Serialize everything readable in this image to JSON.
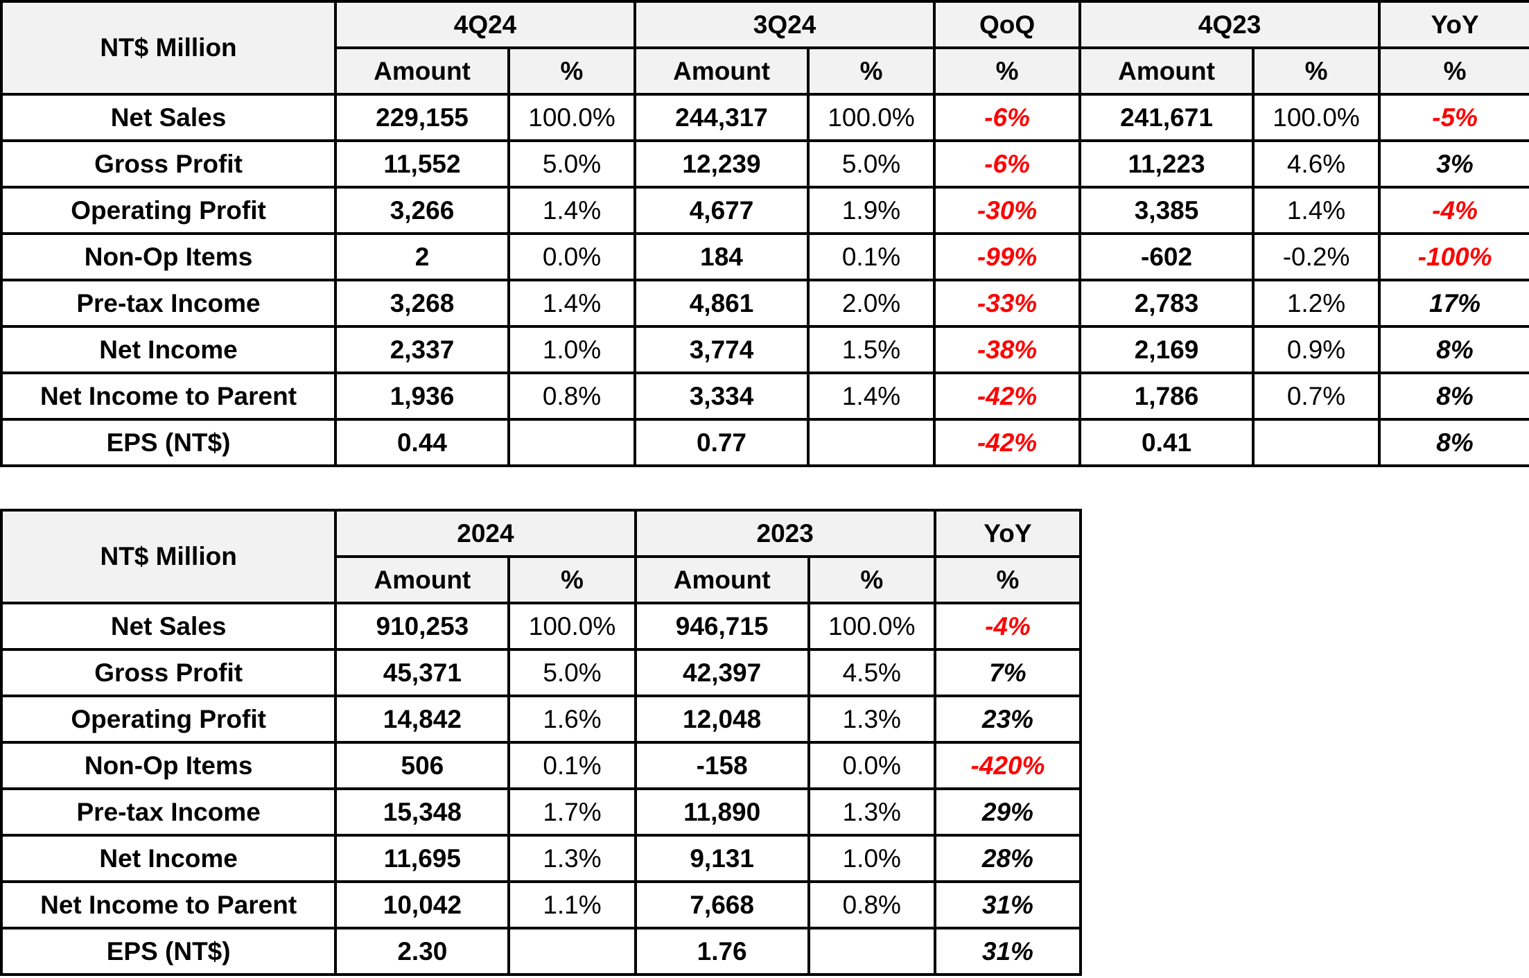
{
  "quarterly": {
    "corner": "NT$ Million",
    "periods": [
      {
        "name": "4Q24",
        "sub": [
          "Amount",
          "%"
        ]
      },
      {
        "name": "3Q24",
        "sub": [
          "Amount",
          "%"
        ]
      },
      {
        "name": "QoQ",
        "sub": [
          "%"
        ]
      },
      {
        "name": "4Q23",
        "sub": [
          "Amount",
          "%"
        ]
      },
      {
        "name": "YoY",
        "sub": [
          "%"
        ]
      }
    ],
    "rows": [
      {
        "label": "Net Sales",
        "cells": [
          "229,155",
          "100.0%",
          "244,317",
          "100.0%",
          "-6%",
          "241,671",
          "100.0%",
          "-5%"
        ],
        "neg": [
          true,
          true
        ]
      },
      {
        "label": "Gross Profit",
        "cells": [
          "11,552",
          "5.0%",
          "12,239",
          "5.0%",
          "-6%",
          "11,223",
          "4.6%",
          "3%"
        ],
        "neg": [
          true,
          false
        ]
      },
      {
        "label": "Operating Profit",
        "cells": [
          "3,266",
          "1.4%",
          "4,677",
          "1.9%",
          "-30%",
          "3,385",
          "1.4%",
          "-4%"
        ],
        "neg": [
          true,
          true
        ]
      },
      {
        "label": "Non-Op Items",
        "cells": [
          "2",
          "0.0%",
          "184",
          "0.1%",
          "-99%",
          "-602",
          "-0.2%",
          "-100%"
        ],
        "neg": [
          true,
          true
        ]
      },
      {
        "label": "Pre-tax Income",
        "cells": [
          "3,268",
          "1.4%",
          "4,861",
          "2.0%",
          "-33%",
          "2,783",
          "1.2%",
          "17%"
        ],
        "neg": [
          true,
          false
        ]
      },
      {
        "label": "Net Income",
        "cells": [
          "2,337",
          "1.0%",
          "3,774",
          "1.5%",
          "-38%",
          "2,169",
          "0.9%",
          "8%"
        ],
        "neg": [
          true,
          false
        ]
      },
      {
        "label": "Net Income to Parent",
        "cells": [
          "1,936",
          "0.8%",
          "3,334",
          "1.4%",
          "-42%",
          "1,786",
          "0.7%",
          "8%"
        ],
        "neg": [
          true,
          false
        ]
      },
      {
        "label": "EPS (NT$)",
        "cells": [
          "0.44",
          "",
          "0.77",
          "",
          "-42%",
          "0.41",
          "",
          "8%"
        ],
        "neg": [
          true,
          false
        ]
      }
    ]
  },
  "annual": {
    "corner": "NT$ Million",
    "periods": [
      {
        "name": "2024",
        "sub": [
          "Amount",
          "%"
        ]
      },
      {
        "name": "2023",
        "sub": [
          "Amount",
          "%"
        ]
      },
      {
        "name": "YoY",
        "sub": [
          "%"
        ]
      }
    ],
    "rows": [
      {
        "label": "Net Sales",
        "cells": [
          "910,253",
          "100.0%",
          "946,715",
          "100.0%",
          "-4%"
        ],
        "neg": [
          true
        ]
      },
      {
        "label": "Gross Profit",
        "cells": [
          "45,371",
          "5.0%",
          "42,397",
          "4.5%",
          "7%"
        ],
        "neg": [
          false
        ]
      },
      {
        "label": "Operating Profit",
        "cells": [
          "14,842",
          "1.6%",
          "12,048",
          "1.3%",
          "23%"
        ],
        "neg": [
          false
        ]
      },
      {
        "label": "Non-Op Items",
        "cells": [
          "506",
          "0.1%",
          "-158",
          "0.0%",
          "-420%"
        ],
        "neg": [
          true
        ]
      },
      {
        "label": "Pre-tax Income",
        "cells": [
          "15,348",
          "1.7%",
          "11,890",
          "1.3%",
          "29%"
        ],
        "neg": [
          false
        ]
      },
      {
        "label": "Net Income",
        "cells": [
          "11,695",
          "1.3%",
          "9,131",
          "1.0%",
          "28%"
        ],
        "neg": [
          false
        ]
      },
      {
        "label": "Net Income to Parent",
        "cells": [
          "10,042",
          "1.1%",
          "7,668",
          "0.8%",
          "31%"
        ],
        "neg": [
          false
        ]
      },
      {
        "label": "EPS (NT$)",
        "cells": [
          "2.30",
          "",
          "1.76",
          "",
          "31%"
        ],
        "neg": [
          false
        ]
      }
    ]
  },
  "colors": {
    "negative_change": "#ff0000",
    "header_fill": "#f2f2f2"
  }
}
